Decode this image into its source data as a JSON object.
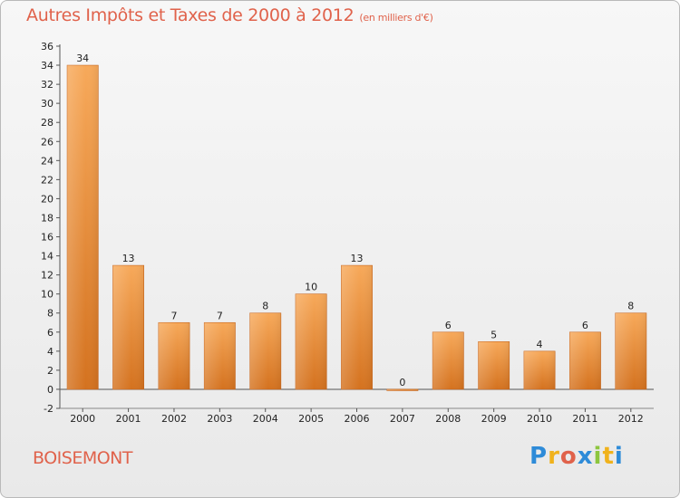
{
  "header": {
    "title": "Autres Impôts et Taxes de 2000 à 2012",
    "unit": "(en milliers d'€)"
  },
  "footer": {
    "city": "BOISEMONT",
    "logo": {
      "text": "Proxiti",
      "letters": [
        "P",
        "r",
        "o",
        "x",
        "i",
        "t",
        "i"
      ],
      "colors": [
        "#2e8bd8",
        "#f0b21c",
        "#e0624b",
        "#2e8bd8",
        "#8dc63f",
        "#f0b21c",
        "#2e8bd8"
      ]
    }
  },
  "colors": {
    "bar_top": "#f7a95a",
    "bar_bottom": "#d4721f",
    "title": "#e0624b"
  },
  "chart_data": {
    "type": "bar",
    "categories": [
      "2000",
      "2001",
      "2002",
      "2003",
      "2004",
      "2005",
      "2006",
      "2007",
      "2008",
      "2009",
      "2010",
      "2011",
      "2012"
    ],
    "values": [
      34,
      13,
      7,
      7,
      8,
      10,
      13,
      0,
      6,
      5,
      4,
      6,
      8
    ],
    "value_labels": [
      "34",
      "13",
      "7",
      "7",
      "8",
      "10",
      "13",
      "0",
      "6",
      "5",
      "4",
      "6",
      "8"
    ],
    "y_ticks": [
      "-2",
      "0",
      "2",
      "4",
      "6",
      "8",
      "10",
      "12",
      "14",
      "16",
      "18",
      "20",
      "22",
      "24",
      "26",
      "28",
      "30",
      "32",
      "34",
      "36"
    ],
    "ylim": [
      -2,
      36
    ],
    "grid": false,
    "legend": "none"
  }
}
